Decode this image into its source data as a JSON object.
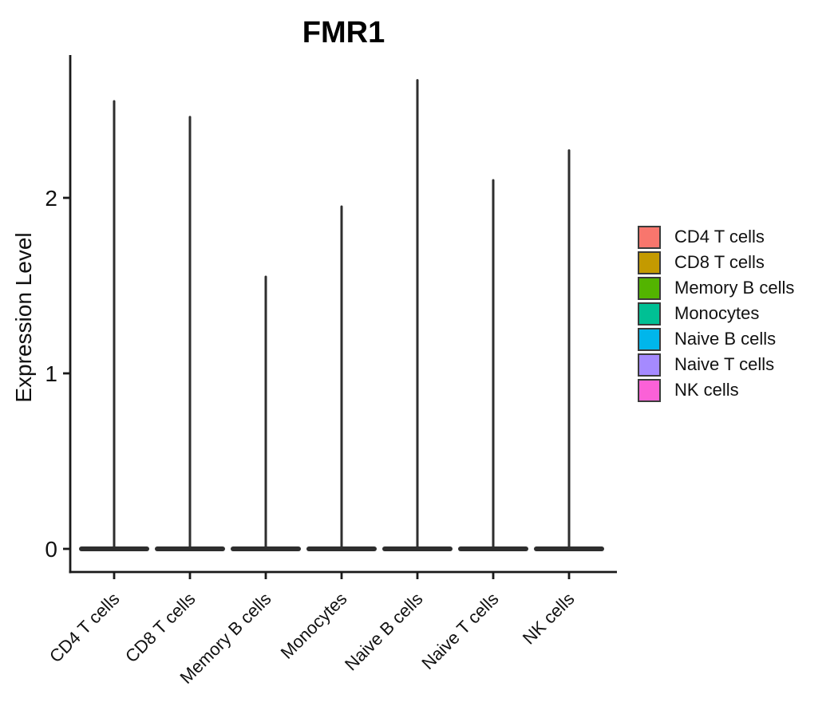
{
  "chart_data": {
    "type": "violin",
    "title": "FMR1",
    "xlabel": "",
    "ylabel": "Expression Level",
    "categories": [
      "CD4 T cells",
      "CD8 T cells",
      "Memory B cells",
      "Monocytes",
      "Naive B cells",
      "Naive T cells",
      "NK cells"
    ],
    "series": [
      {
        "name": "CD4 T cells",
        "color": "#F8766D",
        "max_expression": 2.55,
        "body_at_value": 0
      },
      {
        "name": "CD8 T cells",
        "color": "#C49A00",
        "max_expression": 2.46,
        "body_at_value": 0
      },
      {
        "name": "Memory B cells",
        "color": "#53B400",
        "max_expression": 1.55,
        "body_at_value": 0
      },
      {
        "name": "Monocytes",
        "color": "#00C094",
        "max_expression": 1.95,
        "body_at_value": 0
      },
      {
        "name": "Naive B cells",
        "color": "#00B6EB",
        "max_expression": 2.67,
        "body_at_value": 0
      },
      {
        "name": "Naive T cells",
        "color": "#A58AFF",
        "max_expression": 2.1,
        "body_at_value": 0
      },
      {
        "name": "NK cells",
        "color": "#FB61D7",
        "max_expression": 2.27,
        "body_at_value": 0
      }
    ],
    "y_ticks": [
      0,
      1,
      2
    ],
    "y_tick_labels": [
      "0",
      "1",
      "2"
    ],
    "ylim": [
      -0.13,
      2.81
    ],
    "x_tick_label_rotation_deg": 45,
    "legend_position": "right",
    "violin_shape": "flat wide bulge at 0 with thin vertical spike rising to max expression",
    "grid": "off"
  },
  "colors": {
    "background": "#ffffff",
    "axis_line": "#1a1a1a",
    "tick_text": "#111111",
    "violin_stroke": "#2e2e2e",
    "legend_swatch_border": "#3a3a3a",
    "title_text": "#000000"
  }
}
